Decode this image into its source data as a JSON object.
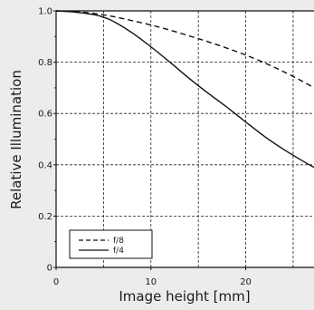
{
  "chart_data": {
    "type": "line",
    "xlabel": "Image height [mm]",
    "ylabel": "Relative Illumination",
    "xlim": [
      0,
      27.2
    ],
    "ylim": [
      0,
      1.0
    ],
    "x_ticks": [
      0,
      10,
      20
    ],
    "y_ticks": [
      0,
      0.2,
      0.4,
      0.6,
      0.8,
      1.0
    ],
    "x_tick_labels": [
      "0",
      "10",
      "20"
    ],
    "y_tick_labels": [
      "0",
      "0.2",
      "0.4",
      "0.6",
      "0.8",
      "1.0"
    ],
    "grid": true,
    "legend_position": "bottom-left",
    "series": [
      {
        "name": "f/8",
        "line_style": "dashed",
        "color": "#111111",
        "x": [
          0,
          2,
          4,
          6,
          8,
          10,
          12,
          14,
          16,
          18,
          20,
          22,
          24,
          26,
          27.2
        ],
        "y": [
          1.0,
          0.997,
          0.99,
          0.978,
          0.962,
          0.945,
          0.925,
          0.903,
          0.88,
          0.855,
          0.828,
          0.797,
          0.763,
          0.725,
          0.7
        ]
      },
      {
        "name": "f/4",
        "line_style": "solid",
        "color": "#111111",
        "x": [
          0,
          2,
          4,
          5,
          6,
          8,
          10,
          12,
          14,
          16,
          18,
          20,
          22,
          24,
          26,
          27.2
        ],
        "y": [
          1.0,
          0.995,
          0.985,
          0.975,
          0.96,
          0.915,
          0.86,
          0.8,
          0.738,
          0.68,
          0.625,
          0.567,
          0.51,
          0.46,
          0.415,
          0.39
        ]
      }
    ]
  }
}
